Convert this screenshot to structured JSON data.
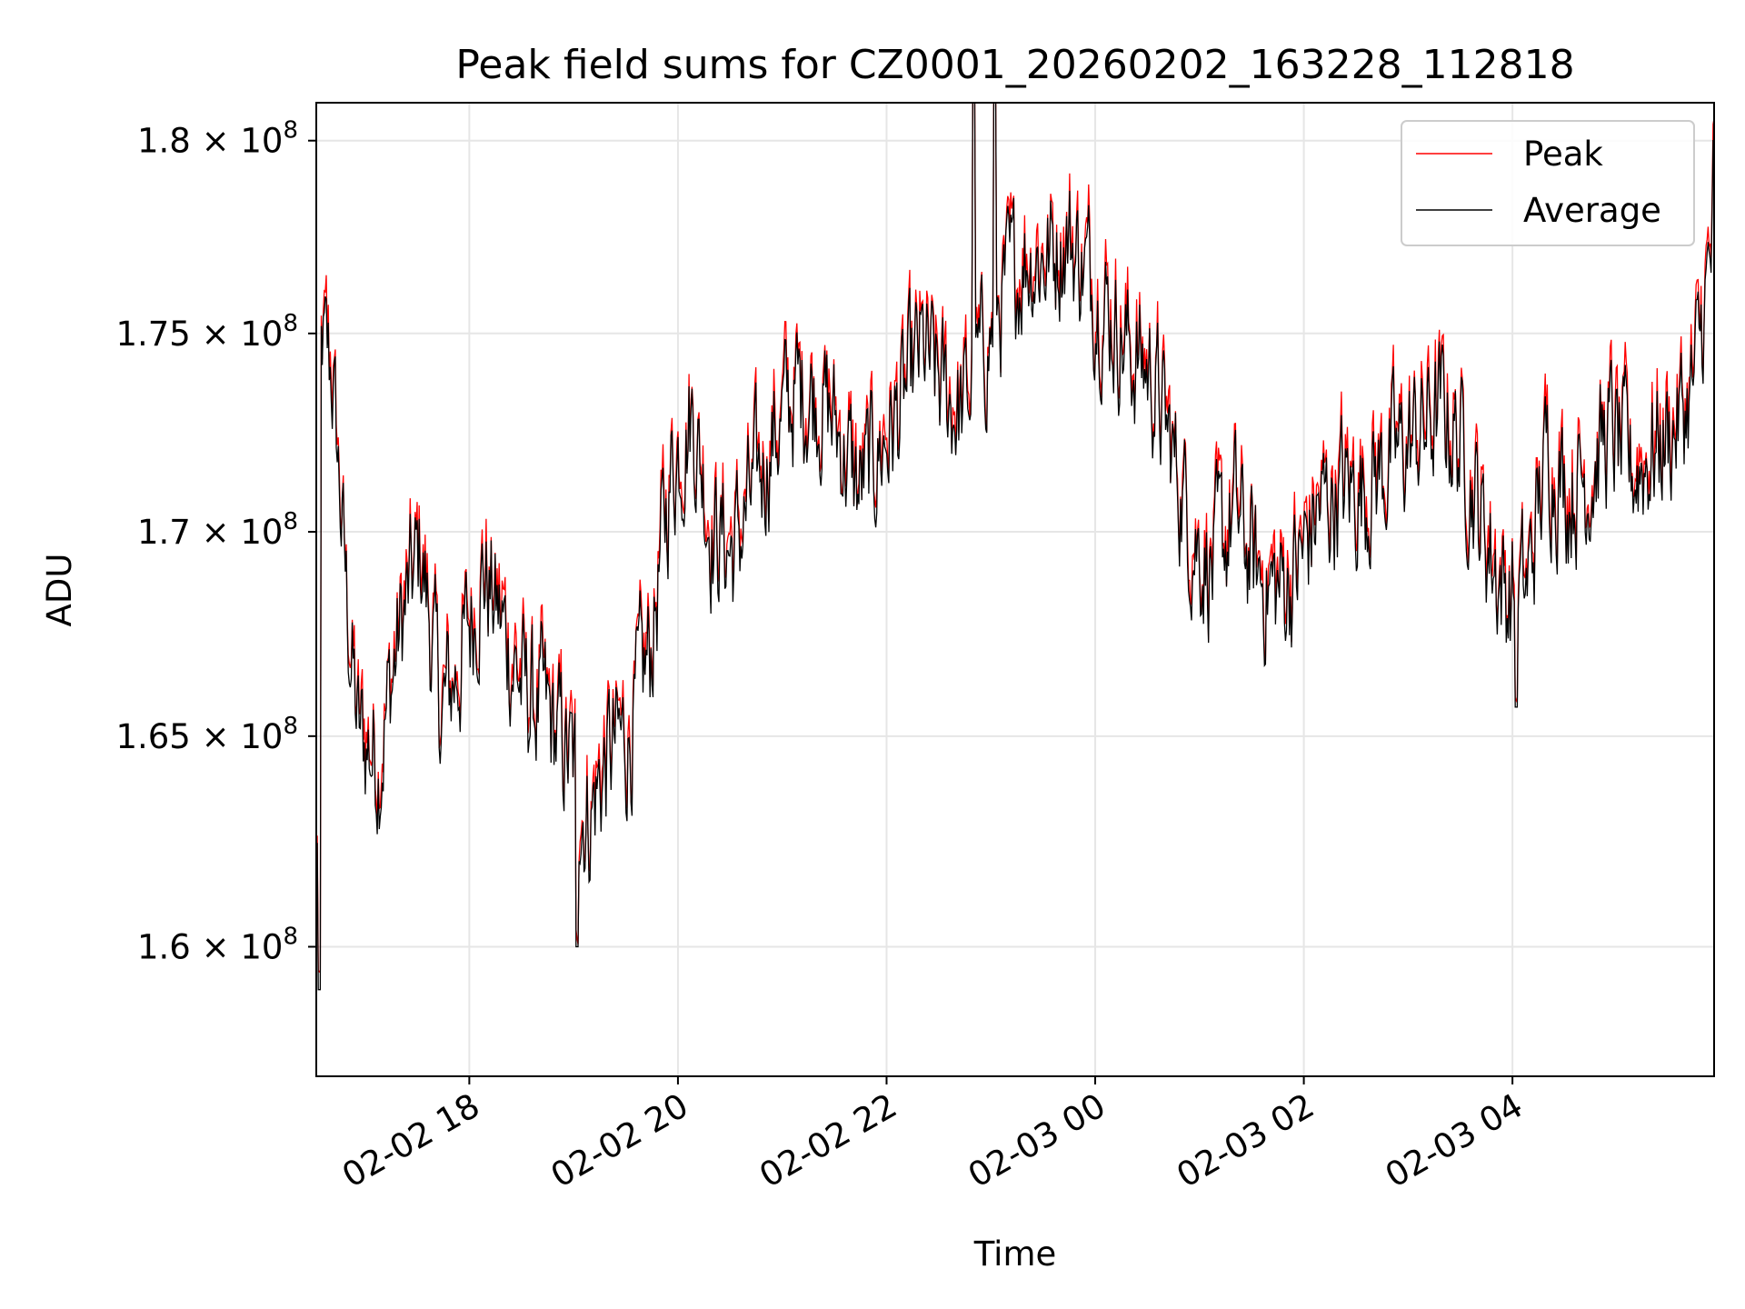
{
  "chart_data": {
    "type": "line",
    "title": "Peak field sums for CZ0001_20260202_163228_112818",
    "xlabel": "Time",
    "ylabel": "ADU",
    "yscale": "log",
    "ylim": [
      157000000,
      181000000
    ],
    "xlim": [
      "2026-02-02 16:32",
      "2026-02-03 05:55"
    ],
    "grid": true,
    "legend_position": "top-right",
    "y_ticks": [
      {
        "value": 160000000,
        "mantissa": "1.6"
      },
      {
        "value": 165000000,
        "mantissa": "1.65"
      },
      {
        "value": 170000000,
        "mantissa": "1.7"
      },
      {
        "value": 175000000,
        "mantissa": "1.75"
      },
      {
        "value": 180000000,
        "mantissa": "1.8"
      }
    ],
    "y_tick_base": "× 10",
    "y_tick_exponent": "8",
    "x_ticks": [
      {
        "hours": 1.467,
        "label": "02-02 18"
      },
      {
        "hours": 3.467,
        "label": "02-02 20"
      },
      {
        "hours": 5.467,
        "label": "02-02 22"
      },
      {
        "hours": 7.467,
        "label": "02-03 00"
      },
      {
        "hours": 9.467,
        "label": "02-03 02"
      },
      {
        "hours": 11.467,
        "label": "02-03 04"
      }
    ],
    "x_range_hours": [
      0,
      13.4
    ],
    "series": [
      {
        "name": "Peak",
        "color": "#ff0000",
        "offset_pct": 0.35
      },
      {
        "name": "Average",
        "color": "#000000",
        "offset_pct": 0.0
      }
    ],
    "trend_hours": [
      0.0,
      0.05,
      0.15,
      0.3,
      0.4,
      0.6,
      0.8,
      1.0,
      1.2,
      1.4,
      1.6,
      1.8,
      2.0,
      2.2,
      2.4,
      2.5,
      2.6,
      2.8,
      3.0,
      3.2,
      3.4,
      3.6,
      3.8,
      4.0,
      4.2,
      4.4,
      4.6,
      4.8,
      5.0,
      5.2,
      5.4,
      5.6,
      5.8,
      6.0,
      6.2,
      6.4,
      6.6,
      6.8,
      7.0,
      7.2,
      7.4,
      7.6,
      7.8,
      8.0,
      8.2,
      8.4,
      8.6,
      8.8,
      9.0,
      9.2,
      9.4,
      9.6,
      9.8,
      10.0,
      10.2,
      10.4,
      10.6,
      10.8,
      11.0,
      11.2,
      11.4,
      11.6,
      11.8,
      12.0,
      12.2,
      12.4,
      12.6,
      12.8,
      13.0,
      13.2,
      13.4
    ],
    "trend_values_1e8": [
      1.6,
      1.745,
      1.74,
      1.68,
      1.65,
      1.645,
      1.675,
      1.695,
      1.655,
      1.67,
      1.69,
      1.675,
      1.66,
      1.655,
      1.645,
      1.64,
      1.63,
      1.645,
      1.65,
      1.67,
      1.715,
      1.73,
      1.7,
      1.695,
      1.71,
      1.725,
      1.735,
      1.735,
      1.725,
      1.71,
      1.72,
      1.73,
      1.745,
      1.735,
      1.73,
      1.745,
      1.76,
      1.77,
      1.77,
      1.775,
      1.765,
      1.755,
      1.745,
      1.74,
      1.72,
      1.7,
      1.69,
      1.705,
      1.69,
      1.685,
      1.69,
      1.705,
      1.71,
      1.71,
      1.715,
      1.72,
      1.725,
      1.73,
      1.72,
      1.7,
      1.685,
      1.685,
      1.72,
      1.71,
      1.715,
      1.725,
      1.715,
      1.72,
      1.725,
      1.735,
      1.775
    ],
    "noise_amplitude_1e8": 0.015,
    "notable_points": [
      {
        "hours": 0.03,
        "value_1e8": 1.59
      },
      {
        "hours": 2.5,
        "value_1e8": 1.6
      },
      {
        "hours": 6.3,
        "value_1e8": 1.81
      },
      {
        "hours": 6.5,
        "value_1e8": 1.81
      },
      {
        "hours": 11.5,
        "value_1e8": 1.657
      },
      {
        "hours": 13.4,
        "value_1e8": 1.8
      }
    ]
  }
}
